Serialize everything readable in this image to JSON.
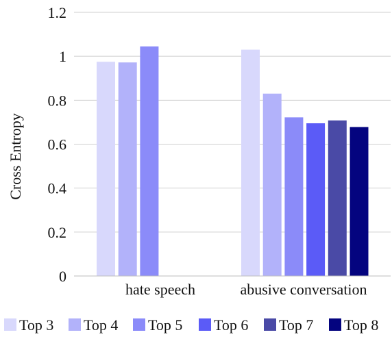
{
  "chart_data": {
    "type": "bar",
    "ylabel": "Cross Entropy",
    "ylim": [
      0,
      1.2
    ],
    "yticks": [
      0,
      0.2,
      0.4,
      0.6,
      0.8,
      1,
      1.2
    ],
    "ytick_labels": [
      "0",
      "0.2",
      "0.4",
      "0.6",
      "0.8",
      "1",
      "1.2"
    ],
    "categories": [
      "hate speech",
      "abusive conversation"
    ],
    "grid": "horizontal",
    "legend_position": "bottom",
    "series": [
      {
        "name": "Top 3",
        "color": "#d8d8fc",
        "values": [
          0.975,
          1.03
        ]
      },
      {
        "name": "Top 4",
        "color": "#b2b2fa",
        "values": [
          0.972,
          0.83
        ]
      },
      {
        "name": "Top 5",
        "color": "#8b8bf9",
        "values": [
          1.045,
          0.722
        ]
      },
      {
        "name": "Top 6",
        "color": "#5b5bf7",
        "values": [
          null,
          0.695
        ]
      },
      {
        "name": "Top 7",
        "color": "#4a4aa6",
        "values": [
          null,
          0.708
        ]
      },
      {
        "name": "Top 8",
        "color": "#04047f",
        "values": [
          null,
          0.678
        ]
      }
    ]
  }
}
